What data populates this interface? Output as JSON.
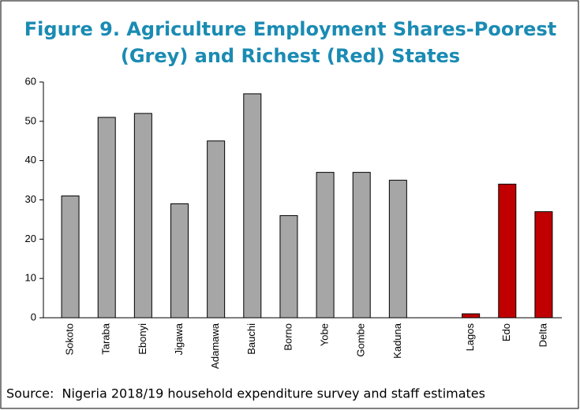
{
  "chart_data": {
    "type": "bar",
    "title": [
      "Figure 9. Agriculture Employment Shares-Poorest",
      "(Grey) and Richest (Red) States"
    ],
    "categories": [
      "Sokoto",
      "Taraba",
      "Ebonyi",
      "Jigawa",
      "Adamawa",
      "Bauchi",
      "Borno",
      "Yobe",
      "Gombe",
      "Kaduna",
      null,
      "Lagos",
      "Edo",
      "Delta"
    ],
    "values": [
      31,
      51,
      52,
      29,
      45,
      57,
      26,
      37,
      37,
      35,
      null,
      1,
      34,
      27
    ],
    "colors": [
      "#a6a6a6",
      "#a6a6a6",
      "#a6a6a6",
      "#a6a6a6",
      "#a6a6a6",
      "#a6a6a6",
      "#a6a6a6",
      "#a6a6a6",
      "#a6a6a6",
      "#a6a6a6",
      null,
      "#c00000",
      "#c00000",
      "#c00000"
    ],
    "ylim": [
      0,
      60
    ],
    "yticks": [
      0,
      10,
      20,
      30,
      40,
      50,
      60
    ],
    "grid": false,
    "source": "Source:  Nigeria 2018/19 household expenditure survey and staff estimates"
  }
}
